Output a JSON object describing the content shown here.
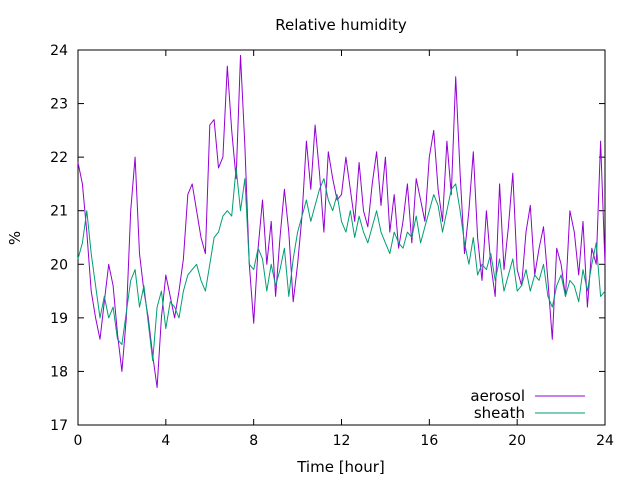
{
  "chart_data": {
    "type": "line",
    "title": "Relative humidity",
    "xlabel": "Time [hour]",
    "ylabel": "%",
    "xlim": [
      0,
      24
    ],
    "ylim": [
      17,
      24
    ],
    "xticks": [
      0,
      4,
      8,
      12,
      16,
      20,
      24
    ],
    "yticks": [
      17,
      18,
      19,
      20,
      21,
      22,
      23,
      24
    ],
    "grid": false,
    "legend_position": "bottom-right",
    "series": [
      {
        "name": "aerosol",
        "color": "#9400d3",
        "x": [
          0,
          0.2,
          0.4,
          0.6,
          0.8,
          1,
          1.2,
          1.4,
          1.6,
          1.8,
          2,
          2.2,
          2.4,
          2.6,
          2.8,
          3,
          3.2,
          3.4,
          3.6,
          3.8,
          4,
          4.2,
          4.4,
          4.6,
          4.8,
          5,
          5.2,
          5.4,
          5.6,
          5.8,
          6,
          6.2,
          6.4,
          6.6,
          6.8,
          7,
          7.2,
          7.4,
          7.6,
          7.8,
          8,
          8.2,
          8.4,
          8.6,
          8.8,
          9,
          9.2,
          9.4,
          9.6,
          9.8,
          10,
          10.2,
          10.4,
          10.6,
          10.8,
          11,
          11.2,
          11.4,
          11.6,
          11.8,
          12,
          12.2,
          12.4,
          12.6,
          12.8,
          13,
          13.2,
          13.4,
          13.6,
          13.8,
          14,
          14.2,
          14.4,
          14.6,
          14.8,
          15,
          15.2,
          15.4,
          15.6,
          15.8,
          16,
          16.2,
          16.4,
          16.6,
          16.8,
          17,
          17.2,
          17.4,
          17.6,
          17.8,
          18,
          18.2,
          18.4,
          18.6,
          18.8,
          19,
          19.2,
          19.4,
          19.6,
          19.8,
          20,
          20.2,
          20.4,
          20.6,
          20.8,
          21,
          21.2,
          21.4,
          21.6,
          21.8,
          22,
          22.2,
          22.4,
          22.6,
          22.8,
          23,
          23.2,
          23.4,
          23.6,
          23.8,
          24
        ],
        "y": [
          21.9,
          21.5,
          20.6,
          19.5,
          19.0,
          18.6,
          19.3,
          20.0,
          19.6,
          18.7,
          18.0,
          19.0,
          21.0,
          22.0,
          20.2,
          19.5,
          19.0,
          18.3,
          17.7,
          19.0,
          19.8,
          19.4,
          19.0,
          19.5,
          20.1,
          21.3,
          21.5,
          21.0,
          20.5,
          20.2,
          22.6,
          22.7,
          21.8,
          22.0,
          23.7,
          22.5,
          21.6,
          23.9,
          22.2,
          20.0,
          18.9,
          20.3,
          21.2,
          20.0,
          20.8,
          19.4,
          20.5,
          21.4,
          20.6,
          19.3,
          20.0,
          20.9,
          22.3,
          21.4,
          22.6,
          21.7,
          20.6,
          22.1,
          21.6,
          21.2,
          21.3,
          22.0,
          21.4,
          20.8,
          21.9,
          21.0,
          20.7,
          21.5,
          22.1,
          21.1,
          22.0,
          20.6,
          21.3,
          20.3,
          20.8,
          21.5,
          20.4,
          21.6,
          21.2,
          20.8,
          22.0,
          22.5,
          21.4,
          20.8,
          22.3,
          21.3,
          23.5,
          21.7,
          20.2,
          21.0,
          22.1,
          20.5,
          19.7,
          21.0,
          20.0,
          19.4,
          21.5,
          19.9,
          20.7,
          21.7,
          19.9,
          19.6,
          20.6,
          21.1,
          19.8,
          20.3,
          20.7,
          19.7,
          18.6,
          20.3,
          20.0,
          19.4,
          21.0,
          20.6,
          19.8,
          20.8,
          19.2,
          20.3,
          20.0,
          22.3,
          20.0
        ]
      },
      {
        "name": "sheath",
        "color": "#009e73",
        "x": [
          0,
          0.2,
          0.4,
          0.6,
          0.8,
          1,
          1.2,
          1.4,
          1.6,
          1.8,
          2,
          2.2,
          2.4,
          2.6,
          2.8,
          3,
          3.2,
          3.4,
          3.6,
          3.8,
          4,
          4.2,
          4.4,
          4.6,
          4.8,
          5,
          5.2,
          5.4,
          5.6,
          5.8,
          6,
          6.2,
          6.4,
          6.6,
          6.8,
          7,
          7.2,
          7.4,
          7.6,
          7.8,
          8,
          8.2,
          8.4,
          8.6,
          8.8,
          9,
          9.2,
          9.4,
          9.6,
          9.8,
          10,
          10.2,
          10.4,
          10.6,
          10.8,
          11,
          11.2,
          11.4,
          11.6,
          11.8,
          12,
          12.2,
          12.4,
          12.6,
          12.8,
          13,
          13.2,
          13.4,
          13.6,
          13.8,
          14,
          14.2,
          14.4,
          14.6,
          14.8,
          15,
          15.2,
          15.4,
          15.6,
          15.8,
          16,
          16.2,
          16.4,
          16.6,
          16.8,
          17,
          17.2,
          17.4,
          17.6,
          17.8,
          18,
          18.2,
          18.4,
          18.6,
          18.8,
          19,
          19.2,
          19.4,
          19.6,
          19.8,
          20,
          20.2,
          20.4,
          20.6,
          20.8,
          21,
          21.2,
          21.4,
          21.6,
          21.8,
          22,
          22.2,
          22.4,
          22.6,
          22.8,
          23,
          23.2,
          23.4,
          23.6,
          23.8,
          24
        ],
        "y": [
          20.1,
          20.4,
          21.0,
          20.2,
          19.6,
          19.0,
          19.4,
          19.0,
          19.2,
          18.6,
          18.5,
          19.1,
          19.7,
          19.9,
          19.2,
          19.6,
          18.9,
          18.2,
          19.2,
          19.5,
          18.8,
          19.3,
          19.2,
          19.0,
          19.5,
          19.8,
          19.9,
          20.0,
          19.7,
          19.5,
          20.0,
          20.5,
          20.6,
          20.9,
          21.0,
          20.9,
          21.8,
          21.0,
          21.6,
          20.0,
          19.9,
          20.3,
          20.1,
          19.5,
          20.0,
          19.6,
          19.9,
          20.3,
          19.4,
          20.1,
          20.6,
          20.9,
          21.2,
          20.8,
          21.1,
          21.4,
          21.6,
          21.2,
          21.0,
          21.3,
          20.8,
          20.6,
          21.0,
          20.5,
          20.9,
          20.6,
          20.4,
          20.7,
          21.0,
          20.6,
          20.4,
          20.2,
          20.6,
          20.4,
          20.3,
          20.6,
          20.5,
          20.9,
          20.4,
          20.7,
          21.0,
          21.3,
          21.1,
          20.6,
          21.0,
          21.4,
          21.5,
          21.0,
          20.4,
          20.0,
          20.5,
          19.8,
          20.0,
          19.9,
          20.2,
          19.7,
          20.1,
          19.5,
          19.8,
          20.1,
          19.5,
          19.6,
          19.9,
          19.5,
          19.8,
          19.7,
          20.0,
          19.4,
          19.2,
          19.6,
          19.8,
          19.4,
          19.7,
          19.6,
          19.3,
          19.9,
          19.5,
          20.0,
          20.4,
          19.4,
          19.5
        ]
      }
    ]
  }
}
